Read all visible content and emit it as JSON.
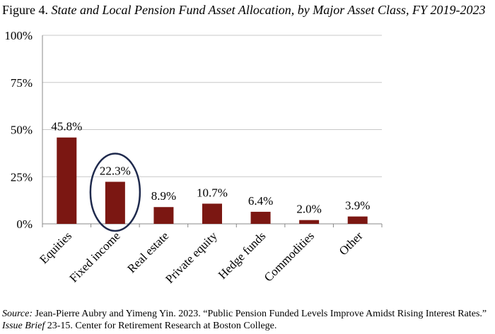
{
  "header": {
    "figure_label": "Figure 4.",
    "title": "State and Local Pension Fund Asset Allocation, by Major Asset Class, FY 2019-2023"
  },
  "chart_data": {
    "type": "bar",
    "categories": [
      "Equities",
      "Fixed income",
      "Real estate",
      "Private equity",
      "Hedge funds",
      "Commodities",
      "Other"
    ],
    "values": [
      45.8,
      22.3,
      8.9,
      10.7,
      6.4,
      2.0,
      3.9
    ],
    "data_labels": [
      "45.8%",
      "22.3%",
      "8.9%",
      "10.7%",
      "6.4%",
      "2.0%",
      "3.9%"
    ],
    "ylim": [
      0,
      100
    ],
    "yticks": [
      0,
      25,
      50,
      75,
      100
    ],
    "ytick_labels": [
      "0%",
      "25%",
      "50%",
      "75%",
      "100%"
    ],
    "grid": true,
    "bar_color": "#7b1712",
    "highlight": {
      "category": "Fixed income",
      "shape": "ellipse",
      "color": "#1f2a4d"
    }
  },
  "footer": {
    "source_label": "Source:",
    "source_text_1": " Jean-Pierre Aubry and Yimeng Yin. 2023. “Public Pension Funded Levels Improve Amidst Rising Interest Rates.” ",
    "issue_brief_label": "Issue Brief",
    "source_text_2": " 23-15. Center for Retirement Research at Boston College."
  }
}
